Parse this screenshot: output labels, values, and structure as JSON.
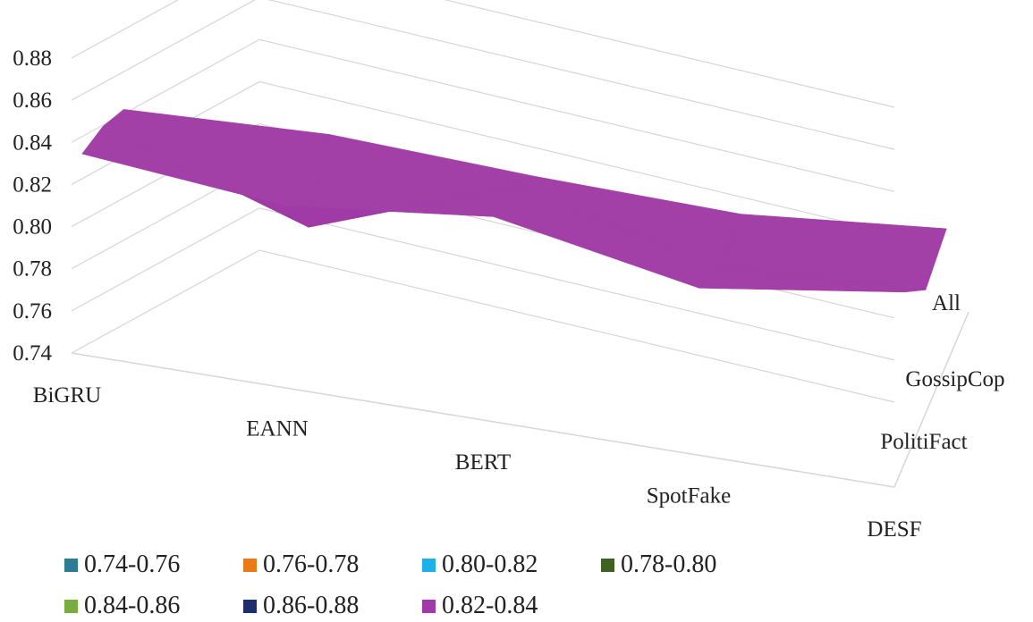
{
  "chart_data": {
    "type": "surface",
    "categories": [
      "BiGRU",
      "EANN",
      "BERT",
      "SpotFake",
      "DESF"
    ],
    "depth_categories": [
      "PolitiFact",
      "GossipCop",
      "All"
    ],
    "z_ticks": [
      "0.74",
      "0.76",
      "0.78",
      "0.80",
      "0.82",
      "0.84",
      "0.86",
      "0.88"
    ],
    "zlim": [
      0.74,
      0.88
    ],
    "series": [
      {
        "name": "PolitiFact",
        "values": [
          0.831,
          0.822,
          0.833,
          0.815,
          0.829
        ]
      },
      {
        "name": "GossipCop",
        "values": [
          0.837,
          0.805,
          0.84,
          0.818,
          0.823
        ]
      },
      {
        "name": "All",
        "values": [
          0.838,
          0.842,
          0.838,
          0.836,
          0.845
        ]
      }
    ],
    "legend": [
      {
        "label": "0.74-0.76",
        "color": "#2e7c92"
      },
      {
        "label": "0.76-0.78",
        "color": "#ea7a18"
      },
      {
        "label": "0.80-0.82",
        "color": "#1fb0ea"
      },
      {
        "label": "0.78-0.80",
        "color": "#3f6121"
      },
      {
        "label": "0.84-0.86",
        "color": "#79ad3f"
      },
      {
        "label": "0.86-0.88",
        "color": "#1d2d6e"
      },
      {
        "label": "0.82-0.84",
        "color": "#a03aa6"
      }
    ],
    "legend_placement": "bottom",
    "grid": true
  }
}
